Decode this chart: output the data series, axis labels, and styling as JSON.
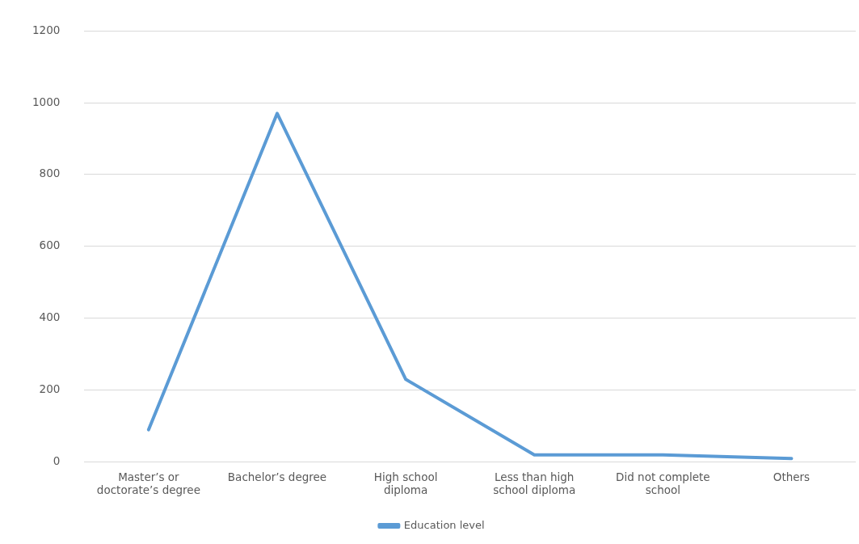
{
  "chart_data": {
    "type": "line",
    "categories": [
      "Master’s or doctorate’s degree",
      "Bachelor’s degree",
      "High school diploma",
      "Less than high school diploma",
      "Did not complete school",
      "Others"
    ],
    "series": [
      {
        "name": "Education level",
        "color": "#5b9bd5",
        "values": [
          90,
          970,
          230,
          20,
          20,
          10
        ]
      }
    ],
    "ylim": [
      0,
      1200
    ],
    "yticks": [
      0,
      200,
      400,
      600,
      800,
      1000,
      1200
    ],
    "grid": "y",
    "legend": "bottom",
    "marker": "none",
    "line_style": "solid"
  }
}
